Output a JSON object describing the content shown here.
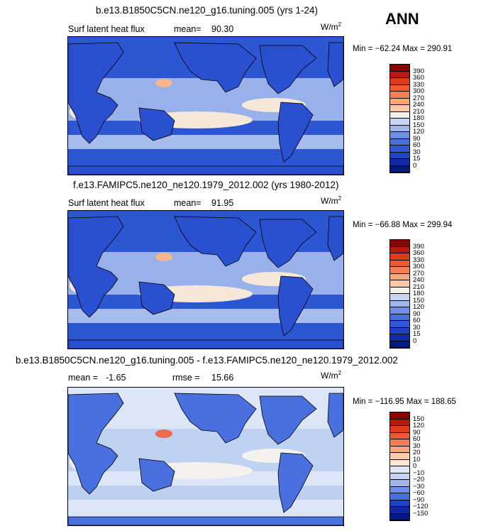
{
  "season": "ANN",
  "panels": [
    {
      "title": "b.e13.B1850C5CN.ne120_g16.tuning.005 (yrs 1-24)",
      "field_label": "Surf latent heat flux",
      "stat1_label": "mean=",
      "stat1_value": "90.30",
      "stat2_label": "",
      "stat2_value": "",
      "unit": "W/m",
      "unit_sup": "2",
      "minmax": "Min = −62.24 Max = 290.91",
      "colorbar_labels": [
        "390",
        "360",
        "330",
        "300",
        "270",
        "240",
        "210",
        "180",
        "150",
        "120",
        "90",
        "60",
        "30",
        "15",
        "0"
      ],
      "colorbar_colors": [
        "#8b0000",
        "#b81a0a",
        "#dd3b1a",
        "#ef5a30",
        "#f57f52",
        "#f9a67b",
        "#fccaa8",
        "#f5f1ea",
        "#c7d6f0",
        "#9fb7ea",
        "#6f8fe6",
        "#4a6fdf",
        "#3057d6",
        "#1e42c4",
        "#0f2aa5",
        "#001a80"
      ],
      "map_colors": {
        "ocean": "#2c56d2",
        "mid": "#6f8fe6",
        "light": "#b5c8f0",
        "pale": "#f5e8d9",
        "warm": "#f7b58f",
        "land": "#2a4fcf"
      }
    },
    {
      "title": "f.e13.FAMIPC5.ne120_ne120.1979_2012.002 (yrs 1980-2012)",
      "field_label": "Surf latent heat flux",
      "stat1_label": "mean=",
      "stat1_value": "91.95",
      "stat2_label": "",
      "stat2_value": "",
      "unit": "W/m",
      "unit_sup": "2",
      "minmax": "Min = −66.88 Max = 299.94",
      "colorbar_labels": [
        "390",
        "360",
        "330",
        "300",
        "270",
        "240",
        "210",
        "180",
        "150",
        "120",
        "90",
        "60",
        "30",
        "15",
        "0"
      ],
      "colorbar_colors": [
        "#8b0000",
        "#b81a0a",
        "#dd3b1a",
        "#ef5a30",
        "#f57f52",
        "#f9a67b",
        "#fccaa8",
        "#f5f1ea",
        "#c7d6f0",
        "#9fb7ea",
        "#6f8fe6",
        "#4a6fdf",
        "#3057d6",
        "#1e42c4",
        "#0f2aa5",
        "#001a80"
      ],
      "map_colors": {
        "ocean": "#2c56d2",
        "mid": "#6f8fe6",
        "light": "#b5c8f0",
        "pale": "#f5e8d9",
        "warm": "#f7b58f",
        "land": "#2a4fcf"
      }
    },
    {
      "title": "b.e13.B1850C5CN.ne120_g16.tuning.005 - f.e13.FAMIPC5.ne120_ne120.1979_2012.002",
      "field_label": "",
      "stat1_label": "mean =",
      "stat1_value": "-1.65",
      "stat2_label": "rmse =",
      "stat2_value": "15.66",
      "unit": "W/m",
      "unit_sup": "2",
      "minmax": "Min = −116.95 Max = 188.65",
      "colorbar_labels": [
        "150",
        "120",
        "90",
        "60",
        "30",
        "20",
        "10",
        "0",
        "−10",
        "−20",
        "−30",
        "−60",
        "−90",
        "−120",
        "−150"
      ],
      "colorbar_colors": [
        "#8b0000",
        "#b81a0a",
        "#dd3b1a",
        "#ef5a30",
        "#f57f52",
        "#f9a67b",
        "#fccaa8",
        "#fde6d6",
        "#dfe6f5",
        "#c7d6f0",
        "#9fb7ea",
        "#6f8fe6",
        "#4a6fdf",
        "#1e42c4",
        "#0f2aa5",
        "#001a80"
      ],
      "map_colors": {
        "ocean": "#dde6f7",
        "mid": "#f9c6a8",
        "light": "#b9cdf0",
        "pale": "#f4f1ee",
        "warm": "#ee6a4a",
        "land": "#4a6fdf"
      }
    }
  ]
}
